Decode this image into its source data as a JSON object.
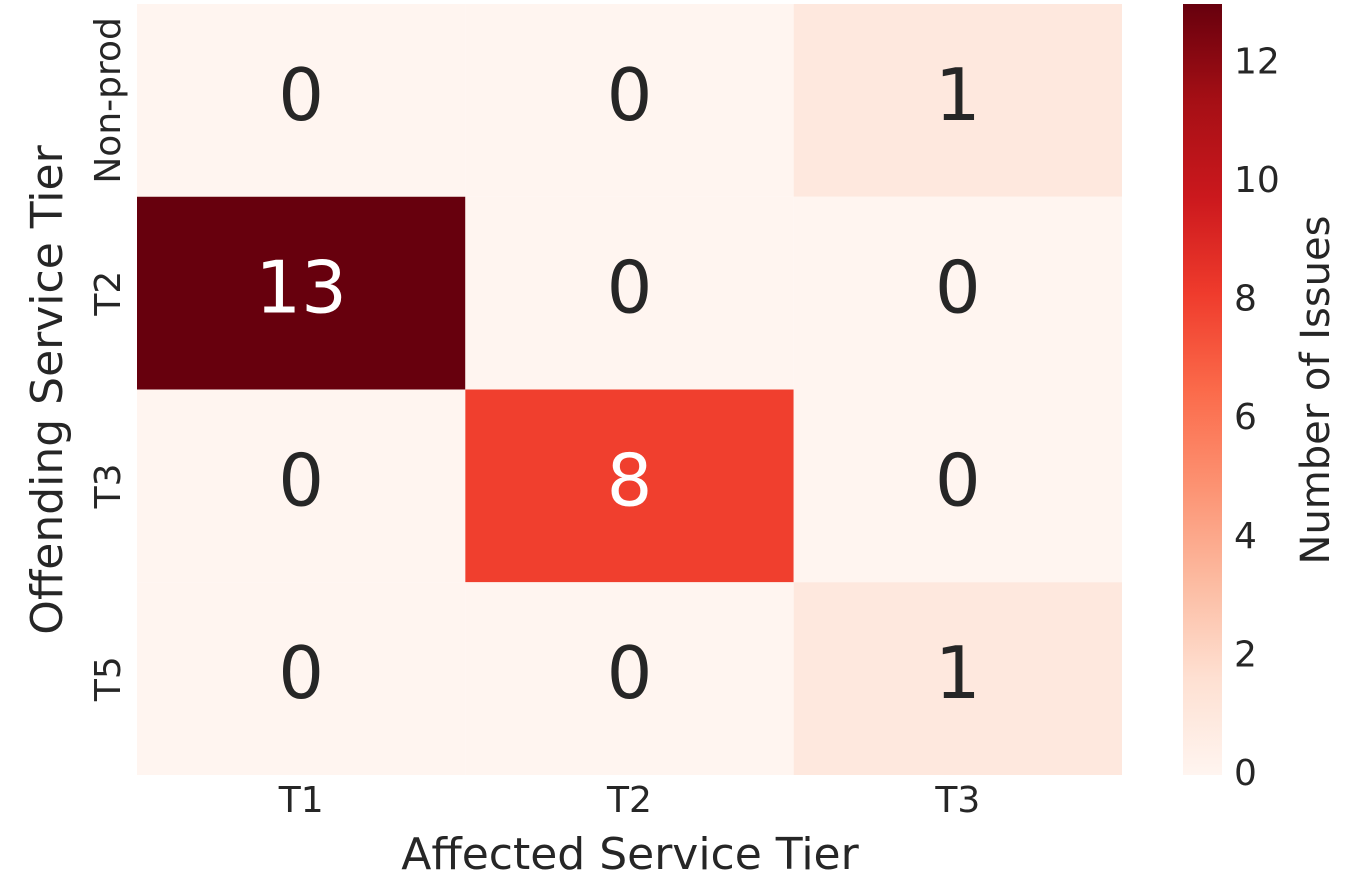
{
  "chart_data": {
    "type": "heatmap",
    "xlabel": "Affected Service Tier",
    "ylabel": "Offending Service Tier",
    "x_categories": [
      "T1",
      "T2",
      "T3"
    ],
    "y_categories": [
      "Non-prod",
      "T2",
      "T3",
      "T5"
    ],
    "values": [
      [
        0,
        0,
        1
      ],
      [
        13,
        0,
        0
      ],
      [
        0,
        8,
        0
      ],
      [
        0,
        0,
        1
      ]
    ],
    "colorbar_label": "Number of Issues",
    "clim": [
      0,
      13
    ],
    "cticks": [
      0,
      2,
      4,
      6,
      8,
      10,
      12
    ],
    "colorscale": [
      "#fff5f0",
      "#fee0d2",
      "#fcbba1",
      "#fc9272",
      "#fb6a4a",
      "#ef3b2c",
      "#cb181d",
      "#a50f15",
      "#67000d"
    ]
  }
}
